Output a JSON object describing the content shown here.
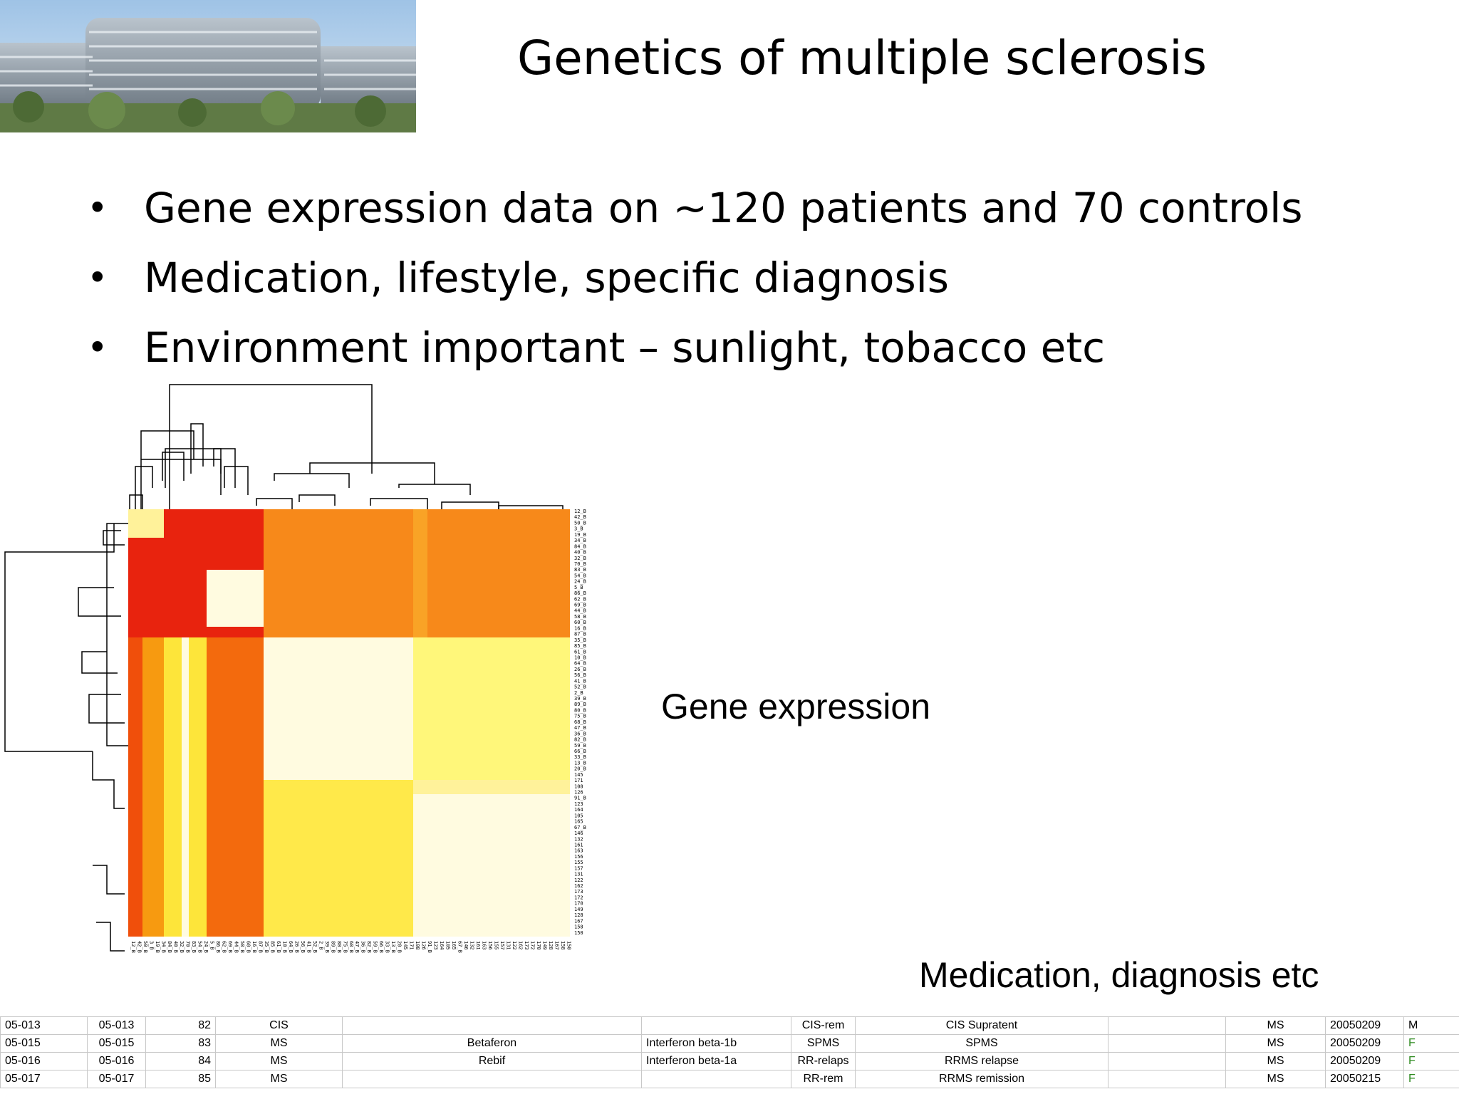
{
  "slide": {
    "title": "Genetics of multiple sclerosis",
    "bullets": [
      "Gene expression data on ~120 patients and 70 controls",
      "Medication, lifestyle, specific diagnosis",
      "Environment important – sunlight, tobacco etc"
    ]
  },
  "captions": {
    "gene_expression": "Gene expression",
    "medication": "Medication, diagnosis etc"
  },
  "heatmap": {
    "labels": [
      "12_B",
      "42_B",
      "50_B",
      "3_B",
      "19_B",
      "34_B",
      "84_B",
      "40_B",
      "32_B",
      "70_B",
      "83_B",
      "54_B",
      "24_B",
      "5_B",
      "86_B",
      "62_B",
      "69_B",
      "44_B",
      "58_B",
      "60_B",
      "16_B",
      "87_B",
      "35_B",
      "85_B",
      "61_B",
      "10_B",
      "64_B",
      "26_B",
      "56_B",
      "41_B",
      "52_B",
      "2_B",
      "39_B",
      "89_B",
      "80_B",
      "75_B",
      "68_B",
      "47_B",
      "36_B",
      "82_B",
      "59_B",
      "66_B",
      "33_B",
      "13_B",
      "20_B",
      "145",
      "171",
      "108",
      "126",
      "91_B",
      "123",
      "164",
      "105",
      "165",
      "67_B",
      "146",
      "132",
      "161",
      "163",
      "156",
      "155",
      "157",
      "131",
      "122",
      "162",
      "173",
      "172",
      "170",
      "149",
      "128",
      "167",
      "158",
      "150"
    ],
    "colors": {
      "red": "#e8230e",
      "orange": "#f77a12",
      "yellow": "#fff13a",
      "pale": "#fffbe0"
    }
  },
  "spreadsheet": {
    "rows": [
      [
        "05-013",
        "05-013",
        "82",
        "CIS",
        "",
        "",
        "CIS-rem",
        "CIS Supratent",
        "",
        "MS",
        "20050209",
        "M"
      ],
      [
        "05-015",
        "05-015",
        "83",
        "MS",
        "Betaferon",
        "Interferon beta-1b",
        "SPMS",
        "SPMS",
        "",
        "MS",
        "20050209",
        "F"
      ],
      [
        "05-016",
        "05-016",
        "84",
        "MS",
        "Rebif",
        "Interferon beta-1a",
        "RR-relaps",
        "RRMS relapse",
        "",
        "MS",
        "20050209",
        "F"
      ],
      [
        "05-017",
        "05-017",
        "85",
        "MS",
        "",
        "",
        "RR-rem",
        "RRMS remission",
        "",
        "MS",
        "20050215",
        "F"
      ]
    ]
  }
}
